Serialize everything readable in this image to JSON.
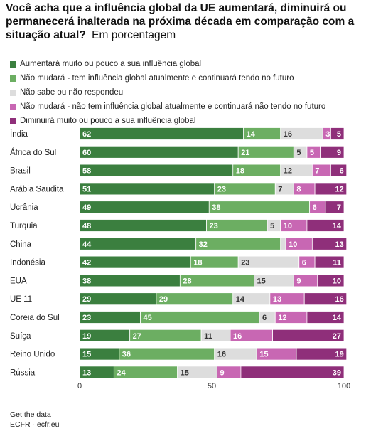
{
  "header": {
    "title": "Você acha que a influência global da UE aumentará, diminuirá ou permanecerá inalterada na próxima década em comparação com a situação atual?",
    "subtitle": "Em porcentagem"
  },
  "footer": {
    "line1": "Get the data",
    "line2": "ECFR · ecfr.eu"
  },
  "chart_data": {
    "type": "bar",
    "orientation": "horizontal",
    "stacked": true,
    "title": "Você acha que a influência global da UE aumentará, diminuirá ou permanecerá inalterada na próxima década em comparação com a situação atual?",
    "subtitle": "Em porcentagem",
    "categories": [
      "Índia",
      "África do Sul",
      "Brasil",
      "Arábia Saudita",
      "Ucrânia",
      "Turquia",
      "China",
      "Indonésia",
      "EUA",
      "UE 11",
      "Coreia do Sul",
      "Suíça",
      "Reino Unido",
      "Rússia"
    ],
    "series": [
      {
        "name": "Aumentará muito ou pouco a sua influência global",
        "color": "#3b7f3f",
        "label_color": "#ffffff",
        "values": [
          62,
          60,
          58,
          51,
          49,
          48,
          44,
          42,
          38,
          29,
          23,
          19,
          15,
          13
        ]
      },
      {
        "name": "Não mudará - tem influência global atualmente e continuará tendo no futuro",
        "color": "#6cae62",
        "label_color": "#ffffff",
        "values": [
          14,
          21,
          18,
          23,
          38,
          23,
          32,
          18,
          28,
          29,
          45,
          27,
          36,
          24
        ]
      },
      {
        "name": "Não sabe ou não respondeu",
        "color": "#dddddd",
        "label_color": "#333333",
        "values": [
          16,
          5,
          12,
          7,
          0,
          5,
          2,
          23,
          15,
          14,
          6,
          11,
          16,
          15
        ]
      },
      {
        "name": "Não mudará - não tem influência global atualmente e continuará não tendo no futuro",
        "color": "#c867b3",
        "label_color": "#ffffff",
        "values": [
          3,
          5,
          7,
          8,
          6,
          10,
          10,
          6,
          9,
          13,
          12,
          16,
          15,
          9
        ]
      },
      {
        "name": "Diminuirá muito ou pouco a sua influência global",
        "color": "#8f2f7a",
        "label_color": "#ffffff",
        "values": [
          5,
          9,
          6,
          12,
          7,
          14,
          13,
          11,
          10,
          16,
          14,
          27,
          19,
          39
        ]
      }
    ],
    "xlim": [
      0,
      100
    ],
    "xticks": [
      0,
      50,
      100
    ],
    "legend_position": "top-left"
  }
}
